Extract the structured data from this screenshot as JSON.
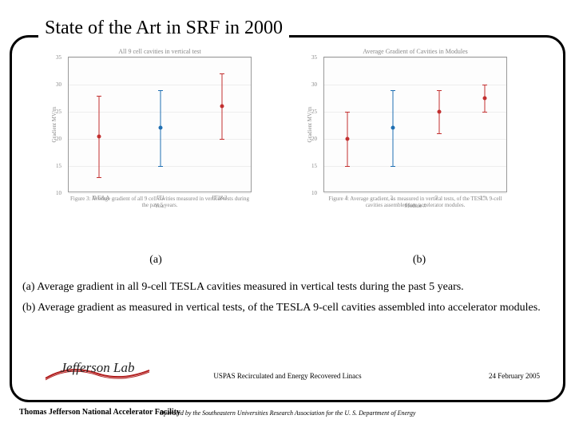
{
  "title": "State of the Art in SRF in 2000",
  "chart_a": {
    "type": "scatter-errorbar",
    "small_title": "All 9 cell cavities in vertical test",
    "caption": "Figure 3: Average gradient of all 9 cell cavities measured in vertical tests during the past 5 years.",
    "ylabel": "Gradient MV/m",
    "xlabel": "Year",
    "ylim": [
      10,
      35
    ],
    "yticks": [
      10,
      15,
      20,
      25,
      30,
      35
    ],
    "x_categories": [
      "D/E&A",
      "IT1",
      "IT2&3"
    ],
    "points": [
      {
        "x": 0,
        "y": 20.5,
        "err_low": 13,
        "err_hi": 28,
        "color": "#c23030"
      },
      {
        "x": 1,
        "y": 22,
        "err_low": 15,
        "err_hi": 29,
        "color": "#1f6fb2"
      },
      {
        "x": 2,
        "y": 26,
        "err_low": 20,
        "err_hi": 32,
        "color": "#c23030"
      }
    ],
    "grid_color": "#eeeeee",
    "border_color": "#999999",
    "background_color": "#fdfdfd",
    "tick_fontsize": 7,
    "marker_size": 5
  },
  "chart_b": {
    "type": "scatter-errorbar",
    "small_title": "Average Gradient of Cavities in Modules",
    "caption": "Figure 4: Average gradient, as measured in vertical tests, of the TESLA 9-cell cavities assembled into accelerator modules.",
    "ylabel": "Gradient MV/m",
    "xlabel": "Module #",
    "ylim": [
      10,
      35
    ],
    "yticks": [
      10,
      15,
      20,
      25,
      30,
      35
    ],
    "x_categories": [
      "1",
      "2",
      "3",
      "1*"
    ],
    "points": [
      {
        "x": 0,
        "y": 20,
        "err_low": 15,
        "err_hi": 25,
        "color": "#c23030"
      },
      {
        "x": 1,
        "y": 22,
        "err_low": 15,
        "err_hi": 29,
        "color": "#1f6fb2"
      },
      {
        "x": 2,
        "y": 25,
        "err_low": 21,
        "err_hi": 29,
        "color": "#c23030"
      },
      {
        "x": 3,
        "y": 27.5,
        "err_low": 25,
        "err_hi": 30,
        "color": "#c23030"
      }
    ],
    "grid_color": "#eeeeee",
    "border_color": "#999999",
    "background_color": "#fdfdfd",
    "tick_fontsize": 7,
    "marker_size": 5
  },
  "ab": {
    "a": "(a)",
    "b": "(b)"
  },
  "caption_a": "(a)  Average gradient in all 9-cell TESLA cavities measured in vertical tests during the past 5  years.",
  "caption_b": "(b) Average gradient as measured in vertical tests, of the TESLA 9-cell cavities assembled into accelerator modules.",
  "logo_text": "Jefferson Lab",
  "footer_mid": "USPAS Recirculated and Energy Recovered Linacs",
  "footer_date": "24 February 2005",
  "footer_left": "Thomas Jefferson National Accelerator Facility",
  "footer_bottom": "Operated by the Southeastern Universities Research Association for the U. S. Department of Energy"
}
